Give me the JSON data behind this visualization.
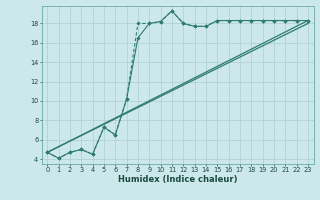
{
  "xlabel": "Humidex (Indice chaleur)",
  "bg_color": "#cce8ea",
  "grid_color": "#aacdd2",
  "line_color": "#2e7d6e",
  "xlim": [
    -0.5,
    23.5
  ],
  "ylim": [
    3.5,
    19.8
  ],
  "xticks": [
    0,
    1,
    2,
    3,
    4,
    5,
    6,
    7,
    8,
    9,
    10,
    11,
    12,
    13,
    14,
    15,
    16,
    17,
    18,
    19,
    20,
    21,
    22,
    23
  ],
  "yticks": [
    4,
    6,
    8,
    10,
    12,
    14,
    16,
    18
  ],
  "line1_x": [
    0,
    1,
    2,
    3,
    4,
    5,
    6,
    7,
    8,
    9,
    10,
    11,
    12,
    13,
    14,
    15,
    16,
    17,
    18,
    19,
    20,
    21,
    22,
    23
  ],
  "line1_y": [
    4.7,
    4.1,
    4.7,
    5.0,
    4.5,
    7.3,
    6.5,
    10.2,
    16.5,
    18.0,
    18.2,
    19.3,
    18.0,
    17.7,
    17.7,
    18.3,
    18.3,
    18.3,
    18.3,
    18.3,
    18.3,
    18.3,
    18.3,
    18.3
  ],
  "line2_x": [
    0,
    1,
    2,
    3,
    4,
    5,
    6,
    7,
    8,
    9,
    10,
    11,
    12,
    13,
    14,
    15,
    16,
    17,
    18,
    19,
    20,
    21,
    22,
    23
  ],
  "line2_y": [
    4.7,
    4.1,
    4.7,
    5.0,
    4.5,
    7.3,
    6.5,
    10.2,
    18.0,
    18.0,
    18.2,
    19.3,
    18.0,
    17.7,
    17.7,
    18.3,
    18.3,
    18.3,
    18.3,
    18.3,
    18.3,
    18.3,
    18.3,
    18.3
  ],
  "line3_x": [
    0,
    23
  ],
  "line3_y": [
    4.7,
    18.3
  ],
  "line4_x": [
    0,
    23
  ],
  "line4_y": [
    4.7,
    18.0
  ],
  "xlabel_fontsize": 6.0,
  "tick_fontsize": 4.8
}
